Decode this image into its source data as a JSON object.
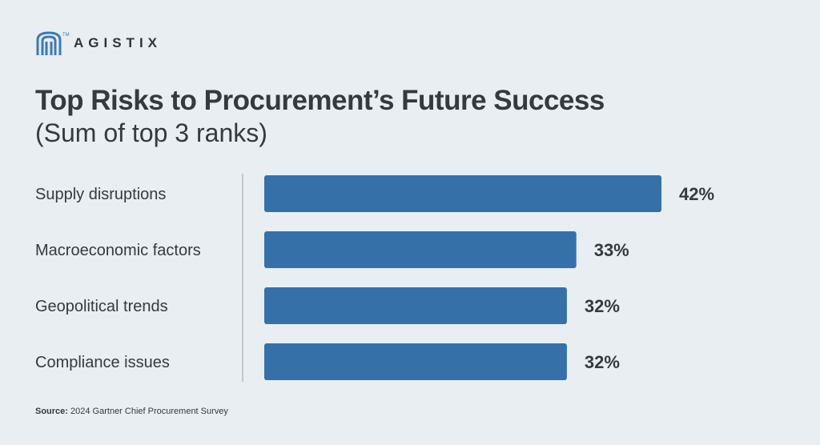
{
  "brand": {
    "name": "AGISTIX",
    "tm": "TM",
    "accent": "#3a7bb5"
  },
  "title": "Top Risks to Procurement’s Future Success",
  "subtitle": "(Sum of top 3 ranks)",
  "source": {
    "label": "Source:",
    "text": "2024 Gartner Chief Procurement Survey"
  },
  "colors": {
    "bar": "#3571a8",
    "text": "#343a3f",
    "divider": "#9aa3aa"
  },
  "chart_data": {
    "type": "bar",
    "orientation": "horizontal",
    "categories": [
      "Supply disruptions",
      "Macroeconomic factors",
      "Geopolitical trends",
      "Compliance issues"
    ],
    "values": [
      42,
      33,
      32,
      32
    ],
    "data_labels": [
      "42%",
      "33%",
      "32%",
      "32%"
    ],
    "xlim": [
      0,
      42
    ],
    "grid": false
  }
}
